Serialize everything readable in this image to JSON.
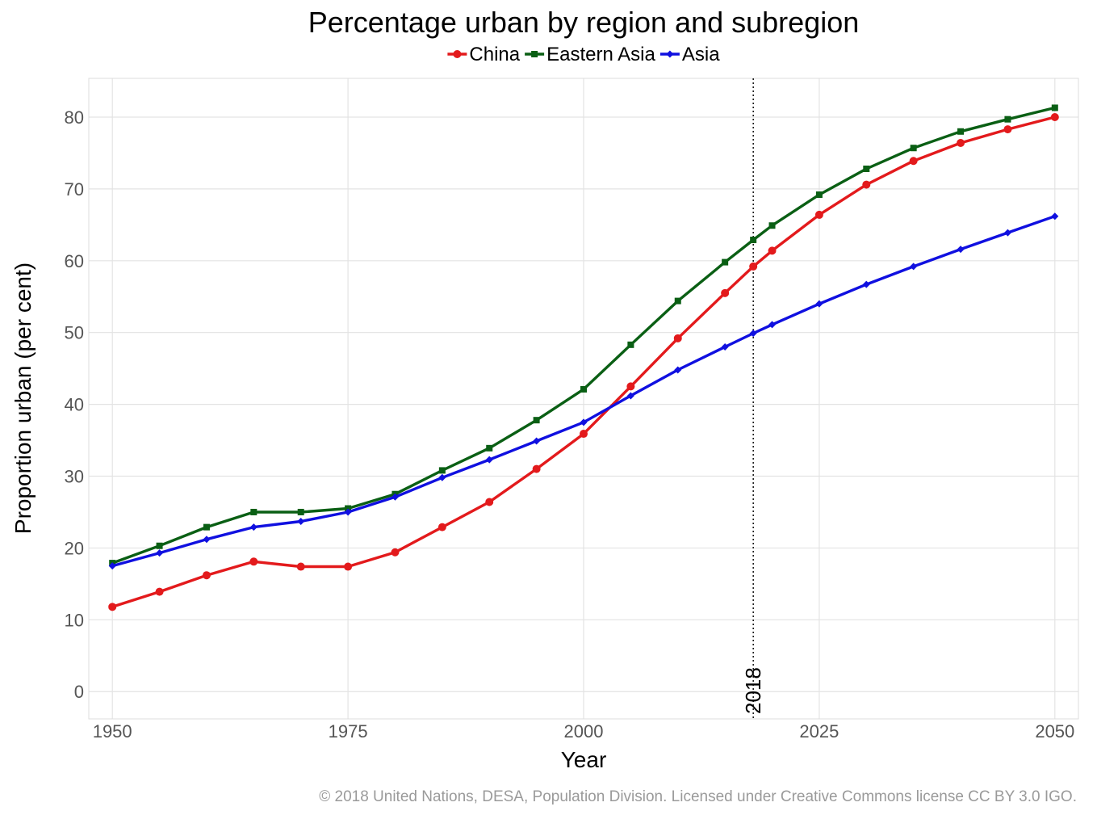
{
  "chart_data": {
    "type": "line",
    "title": "Percentage urban by region and subregion",
    "xlabel": "Year",
    "ylabel": "Proportion urban (per cent)",
    "xlim": [
      1947.5,
      2052.5
    ],
    "ylim": [
      -3.8,
      85.4
    ],
    "x_ticks": [
      1950,
      1975,
      2000,
      2025,
      2050
    ],
    "y_ticks": [
      0,
      10,
      20,
      30,
      40,
      50,
      60,
      70,
      80
    ],
    "x": [
      1950,
      1955,
      1960,
      1965,
      1970,
      1975,
      1980,
      1985,
      1990,
      1995,
      2000,
      2005,
      2010,
      2015,
      2018,
      2020,
      2025,
      2030,
      2035,
      2040,
      2045,
      2050
    ],
    "series": [
      {
        "name": "China",
        "color": "#e31a1c",
        "marker": "circle",
        "values": [
          11.8,
          13.9,
          16.2,
          18.1,
          17.4,
          17.4,
          19.4,
          22.9,
          26.4,
          31.0,
          35.9,
          42.5,
          49.2,
          55.5,
          59.2,
          61.4,
          66.4,
          70.6,
          73.9,
          76.4,
          78.3,
          80.0
        ]
      },
      {
        "name": "Eastern Asia",
        "color": "#0a5f14",
        "marker": "square",
        "values": [
          17.9,
          20.3,
          22.9,
          25.0,
          25.0,
          25.5,
          27.5,
          30.8,
          33.9,
          37.8,
          42.1,
          48.3,
          54.4,
          59.8,
          62.9,
          64.9,
          69.2,
          72.8,
          75.7,
          78.0,
          79.7,
          81.3
        ]
      },
      {
        "name": "Asia",
        "color": "#1010e0",
        "marker": "diamond",
        "values": [
          17.5,
          19.3,
          21.2,
          22.9,
          23.7,
          25.0,
          27.1,
          29.8,
          32.3,
          34.9,
          37.5,
          41.2,
          44.8,
          48.0,
          49.9,
          51.1,
          54.0,
          56.7,
          59.2,
          61.6,
          63.9,
          66.2
        ]
      }
    ],
    "reference_line": {
      "x": 2018,
      "label": "2018"
    },
    "legend_position": "top",
    "grid": true,
    "caption": "© 2018 United Nations, DESA, Population Division. Licensed under Creative Commons license CC BY 3.0 IGO."
  }
}
